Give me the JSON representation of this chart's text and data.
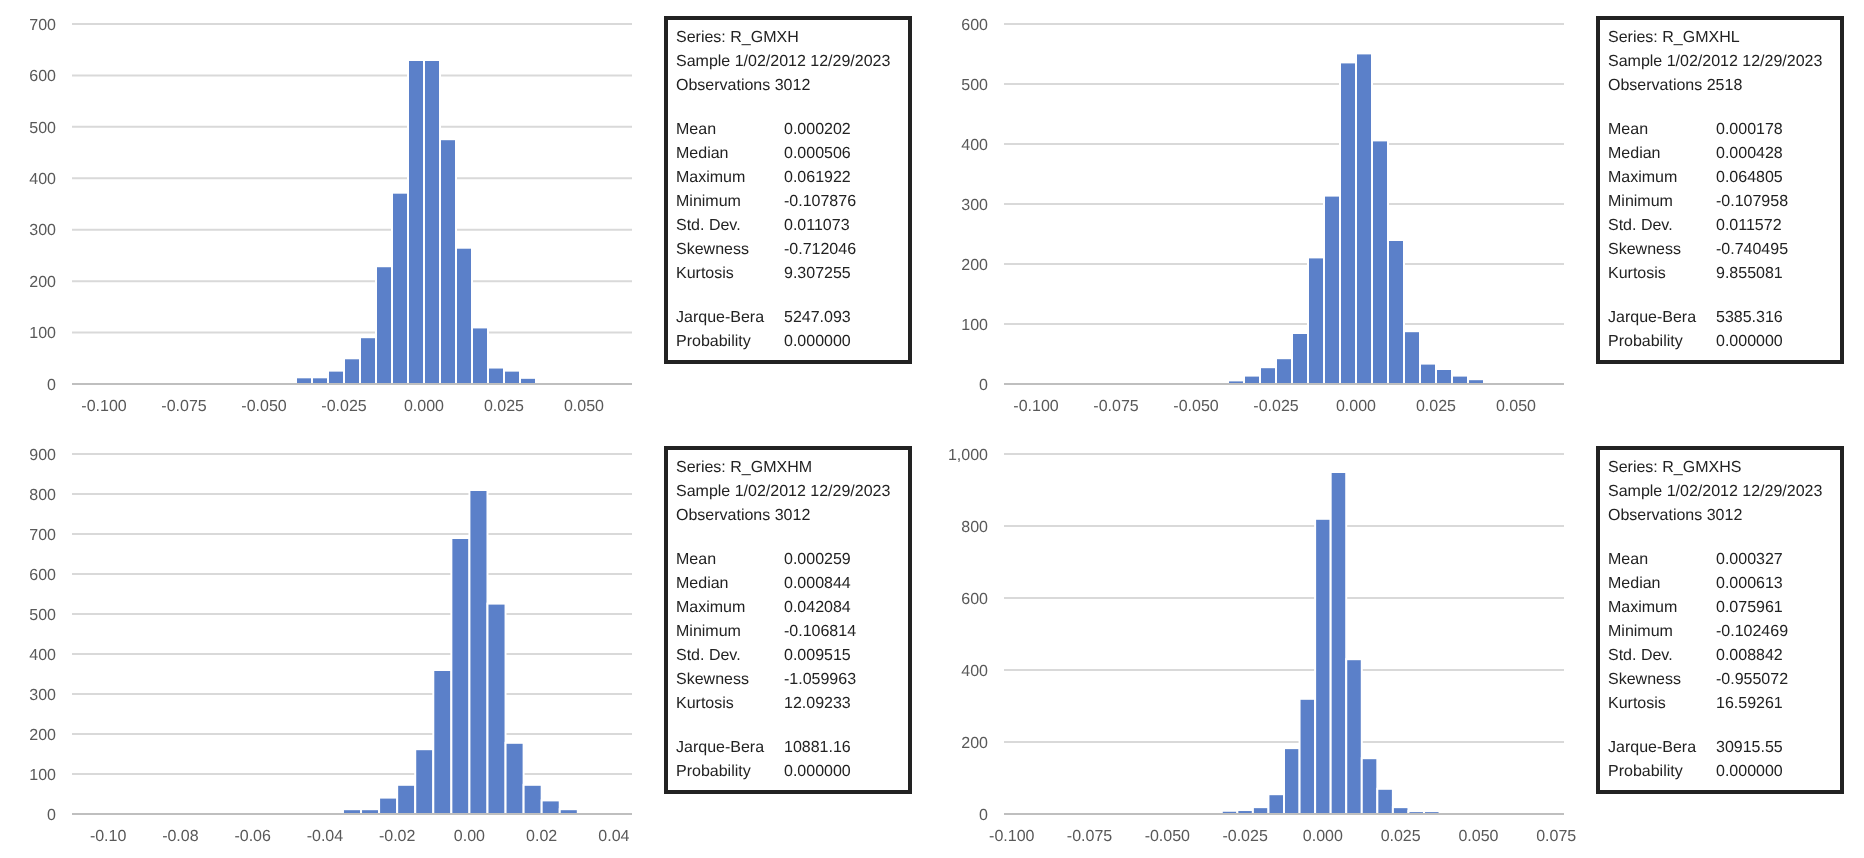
{
  "chart_data": [
    {
      "type": "histogram",
      "color": "#5b80c9",
      "grid": "y",
      "bins": [
        -0.11,
        -0.105,
        -0.1,
        -0.095,
        -0.09,
        -0.085,
        -0.08,
        -0.075,
        -0.07,
        -0.065,
        -0.06,
        -0.055,
        -0.05,
        -0.045,
        -0.04,
        -0.035,
        -0.03,
        -0.025,
        -0.02,
        -0.015,
        -0.01,
        -0.005,
        0,
        0.005,
        0.01,
        0.015,
        0.02,
        0.025,
        0.03,
        0.035,
        0.04,
        0.045,
        0.05,
        0.055,
        0.06,
        0.065
      ],
      "values": [
        2,
        0,
        0,
        0,
        0,
        2,
        2,
        0,
        0,
        0,
        2,
        2,
        2,
        2,
        13,
        13,
        26,
        50,
        91,
        229,
        372,
        630,
        630,
        476,
        265,
        110,
        32,
        26,
        12,
        2,
        2,
        2,
        0,
        0,
        2
      ],
      "xlim": [
        -0.11,
        0.065
      ],
      "xticks": [
        {
          "value": -0.1,
          "label": "-0.100"
        },
        {
          "value": -0.075,
          "label": "-0.075"
        },
        {
          "value": -0.05,
          "label": "-0.050"
        },
        {
          "value": -0.025,
          "label": "-0.025"
        },
        {
          "value": 0,
          "label": "0.000"
        },
        {
          "value": 0.025,
          "label": "0.025"
        },
        {
          "value": 0.05,
          "label": "0.050"
        }
      ],
      "ylim": [
        0,
        700
      ],
      "yticks": [
        0,
        100,
        200,
        300,
        400,
        500,
        600,
        700
      ],
      "annotations": [
        "Series: R_GMXH",
        "Sample 1/02/2012 12/29/2023",
        "Observations 3012",
        "Mean 0.000202",
        "Median 0.000506",
        "Maximum 0.061922",
        "Minimum -0.107876",
        "Std. Dev. 0.011073",
        "Skewness -0.712046",
        "Kurtosis 9.307255",
        "Jarque-Bera 5247.093",
        "Probability 0.000000"
      ]
    },
    {
      "type": "histogram",
      "color": "#5b80c9",
      "grid": "y",
      "bins": [
        -0.11,
        -0.105,
        -0.1,
        -0.095,
        -0.09,
        -0.085,
        -0.08,
        -0.075,
        -0.07,
        -0.065,
        -0.06,
        -0.055,
        -0.05,
        -0.045,
        -0.04,
        -0.035,
        -0.03,
        -0.025,
        -0.02,
        -0.015,
        -0.01,
        -0.005,
        0,
        0.005,
        0.01,
        0.015,
        0.02,
        0.025,
        0.03,
        0.035,
        0.04,
        0.045,
        0.05,
        0.055,
        0.06,
        0.065
      ],
      "values": [
        0,
        2,
        0,
        0,
        0,
        2,
        2,
        0,
        0,
        0,
        2,
        2,
        2,
        2,
        6,
        14,
        28,
        43,
        85,
        211,
        314,
        536,
        551,
        406,
        240,
        88,
        34,
        25,
        14,
        8,
        2,
        2,
        0,
        0,
        2
      ],
      "xlim": [
        -0.11,
        0.065
      ],
      "xticks": [
        {
          "value": -0.1,
          "label": "-0.100"
        },
        {
          "value": -0.075,
          "label": "-0.075"
        },
        {
          "value": -0.05,
          "label": "-0.050"
        },
        {
          "value": -0.025,
          "label": "-0.025"
        },
        {
          "value": 0,
          "label": "0.000"
        },
        {
          "value": 0.025,
          "label": "0.025"
        },
        {
          "value": 0.05,
          "label": "0.050"
        }
      ],
      "ylim": [
        0,
        600
      ],
      "yticks": [
        0,
        100,
        200,
        300,
        400,
        500,
        600
      ],
      "annotations": [
        "Series: R_GMXHL",
        "Sample 1/02/2012 12/29/2023",
        "Observations 2518",
        "Mean 0.000178",
        "Median 0.000428",
        "Maximum 0.064805",
        "Minimum -0.107958",
        "Std. Dev. 0.011572",
        "Skewness -0.740495",
        "Kurtosis 9.855081",
        "Jarque-Bera 5385.316",
        "Probability 0.000000"
      ]
    },
    {
      "type": "histogram",
      "color": "#5b80c9",
      "grid": "y",
      "bins": [
        -0.11,
        -0.105,
        -0.1,
        -0.095,
        -0.09,
        -0.085,
        -0.08,
        -0.075,
        -0.07,
        -0.065,
        -0.06,
        -0.055,
        -0.05,
        -0.045,
        -0.04,
        -0.035,
        -0.03,
        -0.025,
        -0.02,
        -0.015,
        -0.01,
        -0.005,
        0,
        0.005,
        0.01,
        0.015,
        0.02,
        0.025,
        0.03,
        0.035,
        0.04,
        0.045
      ],
      "values": [
        2,
        0,
        0,
        0,
        0,
        0,
        0,
        0,
        0,
        0,
        2,
        2,
        2,
        2,
        2,
        12,
        12,
        41,
        73,
        162,
        360,
        690,
        810,
        526,
        178,
        73,
        34,
        12,
        null,
        2,
        2
      ],
      "xlim": [
        -0.11,
        0.045
      ],
      "xticks": [
        {
          "value": -0.1,
          "label": "-0.10"
        },
        {
          "value": -0.08,
          "label": "-0.08"
        },
        {
          "value": -0.06,
          "label": "-0.06"
        },
        {
          "value": -0.04,
          "label": "-0.04"
        },
        {
          "value": -0.02,
          "label": "-0.02"
        },
        {
          "value": 0,
          "label": "0.00"
        },
        {
          "value": 0.02,
          "label": "0.02"
        },
        {
          "value": 0.04,
          "label": "0.04"
        }
      ],
      "ylim": [
        0,
        900
      ],
      "yticks": [
        0,
        100,
        200,
        300,
        400,
        500,
        600,
        700,
        800,
        900
      ],
      "annotations": [
        "Series: R_GMXHM",
        "Sample 1/02/2012 12/29/2023",
        "Observations 3012",
        "Mean 0.000259",
        "Median 0.000844",
        "Maximum 0.042084",
        "Minimum -0.106814",
        "Std. Dev. 0.009515",
        "Skewness -1.059963",
        "Kurtosis 12.09233",
        "Jarque-Bera 10881.16",
        "Probability 0.000000"
      ]
    },
    {
      "type": "histogram",
      "color": "#5b80c9",
      "grid": "y",
      "bins": [
        -0.1025,
        -0.0975,
        -0.0925,
        -0.0875,
        -0.0825,
        -0.0775,
        -0.0725,
        -0.0675,
        -0.0625,
        -0.0575,
        -0.0525,
        -0.0475,
        -0.0425,
        -0.0375,
        -0.0325,
        -0.0275,
        -0.0225,
        -0.0175,
        -0.0125,
        -0.0075,
        -0.0025,
        0.0025,
        0.0075,
        0.0125,
        0.0175,
        0.0225,
        0.0275,
        0.0325,
        0.0375,
        0.0425,
        0.0475,
        0.0525,
        0.0575,
        0.0625,
        0.0675,
        0.0725,
        0.0775
      ],
      "values": [
        2,
        0,
        0,
        0,
        0,
        0,
        2,
        0,
        2,
        2,
        0,
        2,
        2,
        2,
        9,
        11,
        19,
        55,
        183,
        320,
        820,
        950,
        430,
        155,
        70,
        19,
        8,
        8,
        0,
        2,
        0,
        0,
        2,
        0,
        0,
        2
      ],
      "xlim": [
        -0.1025,
        0.0775
      ],
      "xticks": [
        {
          "value": -0.1,
          "label": "-0.100"
        },
        {
          "value": -0.075,
          "label": "-0.075"
        },
        {
          "value": -0.05,
          "label": "-0.050"
        },
        {
          "value": -0.025,
          "label": "-0.025"
        },
        {
          "value": 0,
          "label": "0.000"
        },
        {
          "value": 0.025,
          "label": "0.025"
        },
        {
          "value": 0.05,
          "label": "0.050"
        },
        {
          "value": 0.075,
          "label": "0.075"
        }
      ],
      "ylim": [
        0,
        1000
      ],
      "yticks": [
        0,
        200,
        400,
        600,
        800,
        {
          "value": 1000,
          "label": "1,000"
        }
      ],
      "annotations": [
        "Series: R_GMXHS",
        "Sample 1/02/2012 12/29/2023",
        "Observations 3012",
        "Mean 0.000327",
        "Median 0.000613",
        "Maximum 0.075961",
        "Minimum -0.102469",
        "Std. Dev. 0.008842",
        "Skewness -0.955072",
        "Kurtosis 16.59261",
        "Jarque-Bera 30915.55",
        "Probability 0.000000"
      ]
    }
  ]
}
